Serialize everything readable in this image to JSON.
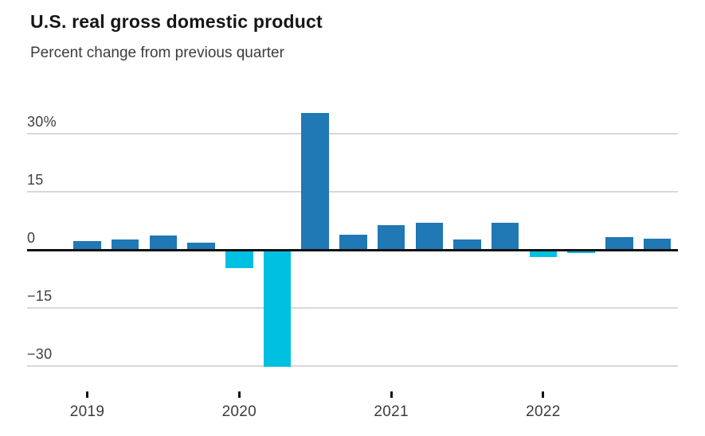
{
  "header": {
    "title": "U.S. real gross domestic product",
    "subtitle": "Percent change from previous quarter"
  },
  "chart_data": {
    "type": "bar",
    "title": "U.S. real gross domestic product",
    "subtitle": "Percent change from previous quarter",
    "categories": [
      "2019 Q1",
      "2019 Q2",
      "2019 Q3",
      "2019 Q4",
      "2020 Q1",
      "2020 Q2",
      "2020 Q3",
      "2020 Q4",
      "2021 Q1",
      "2021 Q2",
      "2021 Q3",
      "2021 Q4",
      "2022 Q1",
      "2022 Q2",
      "2022 Q3",
      "2022 Q4"
    ],
    "values": [
      2.2,
      2.7,
      3.6,
      1.8,
      -4.6,
      -29.9,
      35.3,
      3.9,
      6.3,
      7.0,
      2.7,
      7.0,
      -1.6,
      -0.6,
      3.2,
      2.9
    ],
    "ylabel": "Percent change",
    "ylim": [
      -33,
      37
    ],
    "grid": "horizontal",
    "legend": "none",
    "y_ticks": [
      {
        "label": "30%",
        "value": 30
      },
      {
        "label": "15",
        "value": 15
      },
      {
        "label": "0",
        "value": 0
      },
      {
        "label": "−15",
        "value": -15
      },
      {
        "label": "−30",
        "value": -30
      }
    ],
    "x_ticks": [
      {
        "label": "2019",
        "index": 0
      },
      {
        "label": "2020",
        "index": 4
      },
      {
        "label": "2021",
        "index": 8
      },
      {
        "label": "2022",
        "index": 12
      }
    ],
    "colors": {
      "positive_bar": "#2078b4",
      "negative_bar": "#00c0e2",
      "zero_line": "#111111",
      "gridline": "#d8d8d8"
    }
  }
}
